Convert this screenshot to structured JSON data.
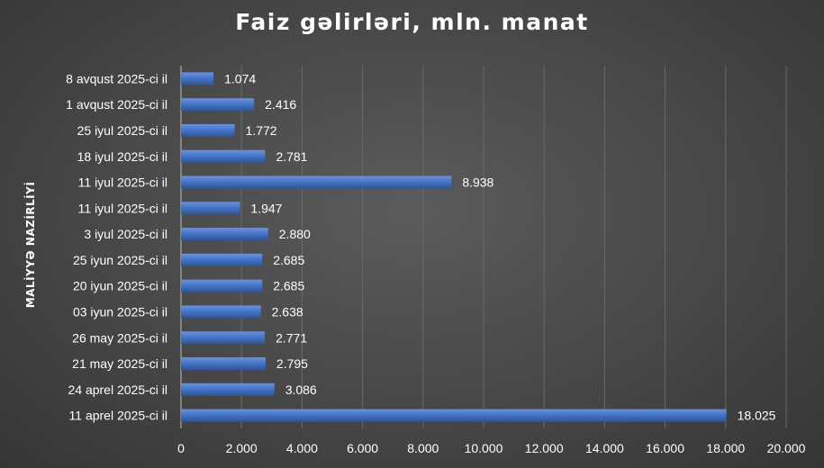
{
  "chart_data": {
    "type": "bar",
    "orientation": "horizontal",
    "title": "Faiz gəlirləri, mln. manat",
    "ylabel": "MALİYYƏ NAZİRLİYİ",
    "xlabel": "",
    "xlim": [
      0,
      20000
    ],
    "x_ticks": [
      "0",
      "2.000",
      "4.000",
      "6.000",
      "8.000",
      "10.000",
      "12.000",
      "14.000",
      "16.000",
      "18.000",
      "20.000"
    ],
    "grid": true,
    "bar_color": "#4472c4",
    "categories": [
      "8 avqust 2025-ci il",
      "1 avqust 2025-ci il",
      "25 iyul 2025-ci il",
      "18 iyul 2025-ci il",
      "11 iyul 2025-ci il",
      "11 iyul 2025-ci il",
      "3 iyul 2025-ci il",
      "25 iyun 2025-ci il",
      "20 iyun 2025-ci il",
      "03 iyun 2025-ci il",
      "26 may 2025-ci il",
      "21 may 2025-ci il",
      "24 aprel 2025-ci il",
      "11 aprel 2025-ci il"
    ],
    "values": [
      1074,
      2416,
      1772,
      2781,
      8938,
      1947,
      2880,
      2685,
      2685,
      2638,
      2771,
      2795,
      3086,
      18025
    ],
    "value_labels": [
      "1.074",
      "2.416",
      "1.772",
      "2.781",
      "8.938",
      "1.947",
      "2.880",
      "2.685",
      "2.685",
      "2.638",
      "2.771",
      "2.795",
      "3.086",
      "18.025"
    ]
  }
}
